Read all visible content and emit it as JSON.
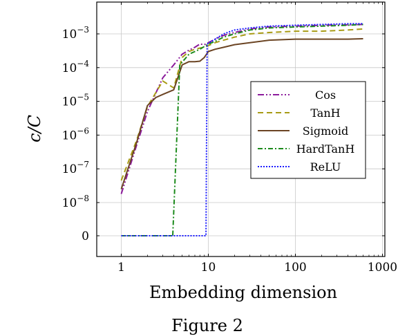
{
  "figure_caption": "Figure 2",
  "chart_data": {
    "type": "line",
    "title": "",
    "xlabel": "Embedding dimension",
    "ylabel": "c/C",
    "x_scale": "log",
    "y_scale": "symlog",
    "xlim": [
      0.55,
      1000
    ],
    "ylim": [
      -3e-10,
      0.003
    ],
    "grid": true,
    "legend_position": "right",
    "x_ticks": [
      {
        "value": 1,
        "label": "1"
      },
      {
        "value": 10,
        "label": "10"
      },
      {
        "value": 100,
        "label": "100"
      },
      {
        "value": 1000,
        "label": "1000"
      }
    ],
    "y_ticks": [
      {
        "value": 0,
        "base": "",
        "exp": "",
        "label": "0"
      },
      {
        "value": 1e-08,
        "base": "10",
        "exp": "−8"
      },
      {
        "value": 1e-07,
        "base": "10",
        "exp": "−7"
      },
      {
        "value": 1e-06,
        "base": "10",
        "exp": "−6"
      },
      {
        "value": 1e-05,
        "base": "10",
        "exp": "−5"
      },
      {
        "value": 0.0001,
        "base": "10",
        "exp": "−4"
      },
      {
        "value": 0.001,
        "base": "10",
        "exp": "−3"
      }
    ],
    "series": [
      {
        "name": "Cos",
        "color": "#8b1a9b",
        "dash": "9 3 2 3 2 3",
        "x": [
          1,
          1.5,
          2,
          3,
          4,
          5,
          6,
          7,
          8,
          9,
          10,
          12,
          15,
          20,
          30,
          50,
          100,
          200,
          400,
          600
        ],
        "y": [
          1.8e-08,
          5e-07,
          5e-06,
          5e-05,
          0.00012,
          0.00025,
          0.00033,
          0.0004,
          0.0005,
          0.00048,
          0.00055,
          0.0007,
          0.0009,
          0.0011,
          0.0014,
          0.0016,
          0.0017,
          0.0018,
          0.00185,
          0.0019
        ]
      },
      {
        "name": "TanH",
        "color": "#a89b14",
        "dash": "8 5",
        "x": [
          1,
          1.5,
          2,
          3,
          4,
          5,
          6,
          7,
          8,
          9,
          10,
          12,
          15,
          20,
          30,
          50,
          100,
          200,
          400,
          600
        ],
        "y": [
          4.5e-08,
          7e-07,
          7e-06,
          4e-05,
          2.5e-05,
          0.0002,
          0.0003,
          0.00035,
          0.00038,
          0.0004,
          0.00045,
          0.00055,
          0.00065,
          0.0008,
          0.001,
          0.0011,
          0.0012,
          0.0012,
          0.0013,
          0.0014
        ]
      },
      {
        "name": "Sigmoid",
        "color": "#6b4423",
        "dash": "",
        "x": [
          1,
          1.5,
          2,
          2.5,
          3,
          4,
          5,
          6,
          7,
          8,
          9,
          10,
          12,
          15,
          20,
          30,
          50,
          100,
          200,
          400,
          600
        ],
        "y": [
          2.5e-08,
          6e-07,
          7.5e-06,
          1.3e-05,
          1.6e-05,
          2.2e-05,
          0.00012,
          0.00015,
          0.00015,
          0.000155,
          0.0002,
          0.0003,
          0.00035,
          0.0004,
          0.00048,
          0.00055,
          0.00065,
          0.0007,
          0.0007,
          0.0007,
          0.00072
        ]
      },
      {
        "name": "HardTanH",
        "color": "#1a8a1a",
        "dash": "7 3 2 3",
        "x": [
          1,
          2,
          3,
          3.9,
          4.7,
          6,
          8,
          10,
          12,
          15,
          20,
          30,
          50,
          100,
          200,
          400,
          600
        ],
        "y": [
          0,
          0,
          0,
          0,
          0.00012,
          0.00025,
          0.00035,
          0.0005,
          0.0006,
          0.0008,
          0.001,
          0.0013,
          0.0015,
          0.0016,
          0.0017,
          0.0018,
          0.0019
        ]
      },
      {
        "name": "ReLU",
        "color": "#1a1aff",
        "dash": "2 2",
        "x": [
          1,
          3,
          6,
          9.4,
          9.7,
          12,
          15,
          20,
          30,
          50,
          100,
          200,
          400,
          600
        ],
        "y": [
          0,
          0,
          0,
          0,
          0.0005,
          0.0007,
          0.001,
          0.0013,
          0.0015,
          0.0017,
          0.0018,
          0.0019,
          0.002,
          0.002
        ]
      }
    ]
  }
}
